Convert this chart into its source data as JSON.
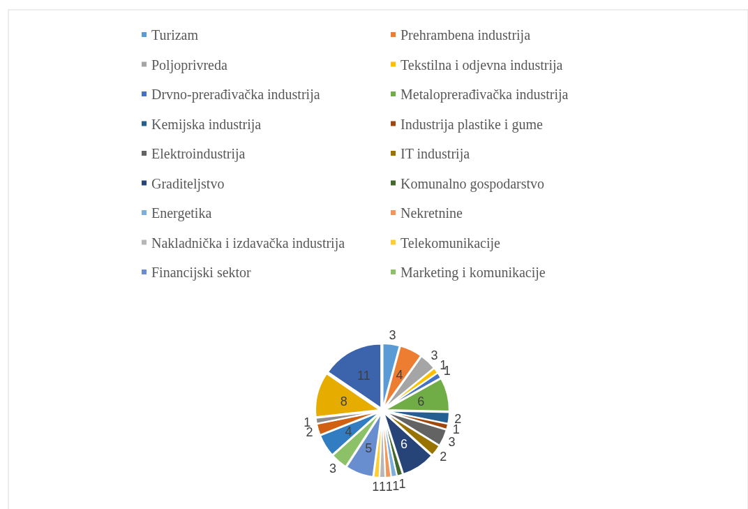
{
  "chart_data": {
    "type": "pie",
    "categories": [
      "Turizam",
      "Prehrambena industrija",
      "Poljoprivreda",
      "Tekstilna i odjevna industrija",
      "Drvno-prerađivačka industrija",
      "Metaloprerađivačka industrija",
      "Kemijska industrija",
      "Industrija plastike i gume",
      "Elektroindustrija",
      "IT industrija",
      "Graditeljstvo",
      "Komunalno gospodarstvo",
      "Energetika",
      "Nekretnine",
      "Nakladnička i izdavačka industrija",
      "Telekomunikacije",
      "Financijski sektor",
      "Marketing i komunikacije",
      null,
      null,
      null,
      null,
      null
    ],
    "values": [
      3,
      4,
      3,
      1,
      1,
      6,
      2,
      1,
      3,
      2,
      6,
      1,
      1,
      1,
      1,
      1,
      5,
      3,
      4,
      2,
      1,
      8,
      11
    ],
    "colors": [
      "#5b9bd5",
      "#ed7d31",
      "#a5a5a5",
      "#ffc000",
      "#4472c4",
      "#70ad47",
      "#255e91",
      "#9e480e",
      "#636363",
      "#997300",
      "#264478",
      "#43682b",
      "#7cafdd",
      "#f1975a",
      "#b7b7b7",
      "#ffcd33",
      "#698ed0",
      "#8cc168",
      "#327dc2",
      "#d26012",
      "#8c8c8c",
      "#e6ac00",
      "#3c64ad"
    ],
    "data_labels": true,
    "legend": "top"
  }
}
